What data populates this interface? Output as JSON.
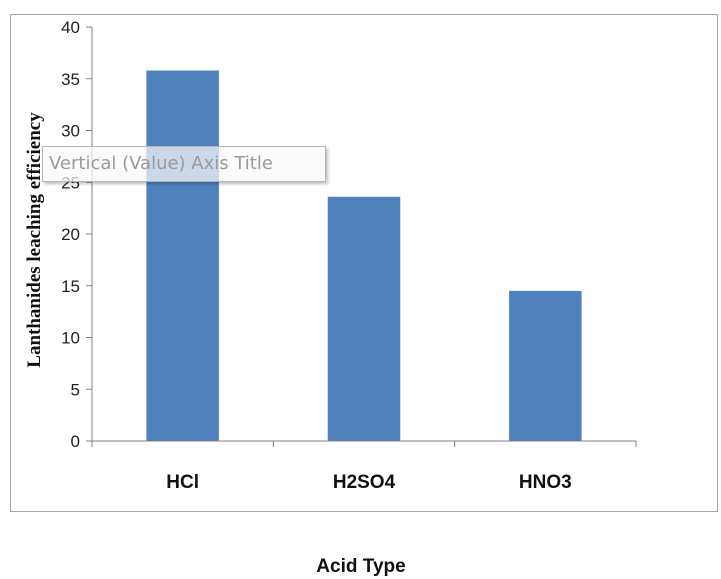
{
  "chart_data": {
    "type": "bar",
    "categories": [
      "HCl",
      "H2SO4",
      "HNO3"
    ],
    "values": [
      35.8,
      23.6,
      14.5
    ],
    "xlabel": "Acid Type",
    "ylabel": "Lanthanides leaching efficiency",
    "ylim": [
      0,
      40
    ],
    "yticks": [
      0,
      5,
      10,
      15,
      20,
      25,
      30,
      35,
      40
    ],
    "grid": false,
    "bar_color": "#4f81bd"
  },
  "tooltip": {
    "text": "Vertical (Value) Axis Title"
  }
}
